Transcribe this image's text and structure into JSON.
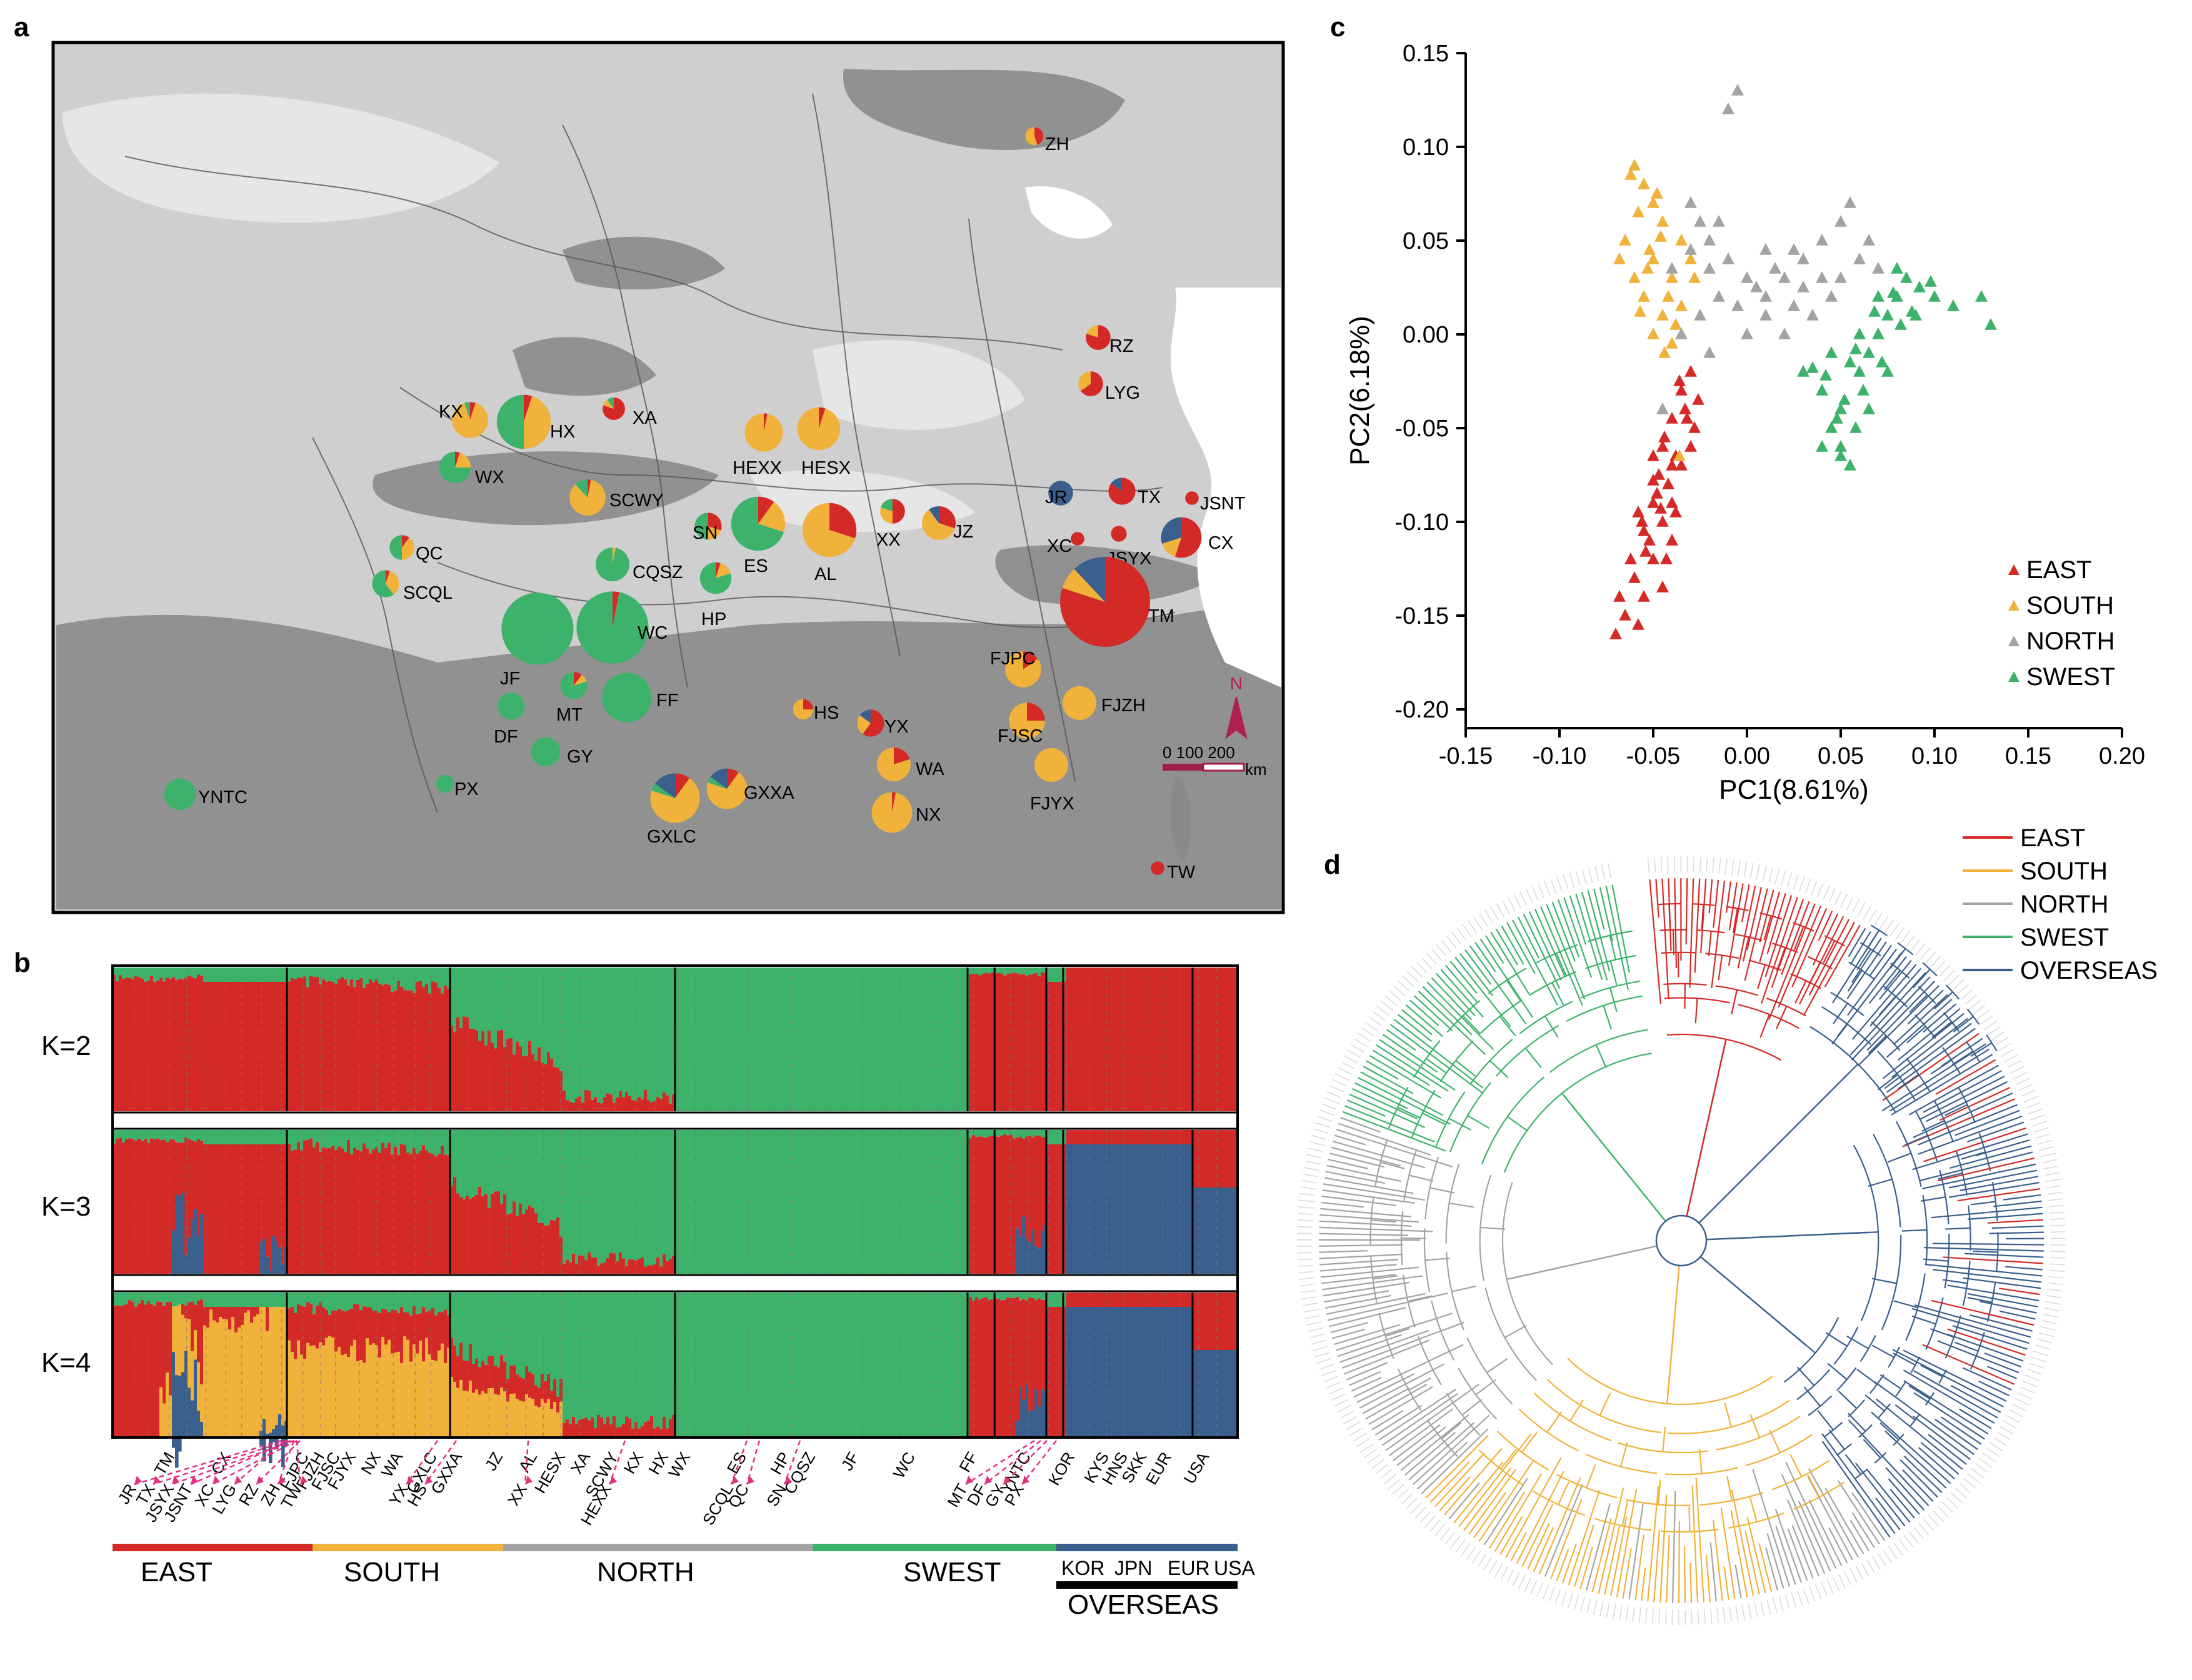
{
  "panel_labels": {
    "a": "a",
    "b": "b",
    "c": "c",
    "d": "d"
  },
  "colors": {
    "east": "#d42a27",
    "south": "#f0b23a",
    "north": "#a3a3a3",
    "swest": "#3db26a",
    "overseas": "#3a5f8c"
  },
  "map": {
    "compass": "N",
    "scale_label": "0 100 200",
    "scale_unit": "km",
    "sites": [
      {
        "name": "ZH",
        "size": 0.8,
        "mix": [
          0.45,
          0.55,
          0,
          0,
          0
        ]
      },
      {
        "name": "RZ",
        "size": 1.1,
        "mix": [
          0.8,
          0.2,
          0,
          0,
          0
        ]
      },
      {
        "name": "LYG",
        "size": 1.1,
        "mix": [
          0.65,
          0.35,
          0,
          0,
          0
        ]
      },
      {
        "name": "KX",
        "size": 1.6,
        "mix": [
          0.05,
          0.9,
          0,
          0.05,
          0
        ]
      },
      {
        "name": "HX",
        "size": 2.4,
        "mix": [
          0.05,
          0.45,
          0,
          0.5,
          0
        ]
      },
      {
        "name": "XA",
        "size": 1.0,
        "mix": [
          0.8,
          0.1,
          0,
          0.1,
          0
        ]
      },
      {
        "name": "WX",
        "size": 1.4,
        "mix": [
          0.05,
          0.2,
          0,
          0.75,
          0
        ]
      },
      {
        "name": "HEXX",
        "size": 1.7,
        "mix": [
          0.03,
          0.97,
          0,
          0,
          0
        ]
      },
      {
        "name": "HESX",
        "size": 1.9,
        "mix": [
          0.05,
          0.95,
          0,
          0,
          0
        ]
      },
      {
        "name": "SCWY",
        "size": 1.6,
        "mix": [
          0.03,
          0.85,
          0,
          0.12,
          0
        ]
      },
      {
        "name": "JR",
        "size": 1.1,
        "mix": [
          0,
          0,
          0,
          0,
          1
        ]
      },
      {
        "name": "TX",
        "size": 1.2,
        "mix": [
          0.85,
          0,
          0,
          0,
          0.15
        ]
      },
      {
        "name": "JSNT",
        "size": 0.6,
        "mix": [
          1,
          0,
          0,
          0,
          0
        ]
      },
      {
        "name": "QC",
        "size": 1.1,
        "mix": [
          0.1,
          0.4,
          0,
          0.5,
          0
        ]
      },
      {
        "name": "SN",
        "size": 1.2,
        "mix": [
          0.3,
          0.2,
          0,
          0.5,
          0
        ]
      },
      {
        "name": "ES",
        "size": 2.4,
        "mix": [
          0.1,
          0.2,
          0,
          0.7,
          0
        ]
      },
      {
        "name": "AL",
        "size": 2.4,
        "mix": [
          0.3,
          0.7,
          0,
          0,
          0
        ]
      },
      {
        "name": "XX",
        "size": 1.1,
        "mix": [
          0.5,
          0.3,
          0,
          0.2,
          0
        ]
      },
      {
        "name": "JZ",
        "size": 1.5,
        "mix": [
          0.3,
          0.6,
          0,
          0,
          0.1
        ]
      },
      {
        "name": "XC",
        "size": 0.6,
        "mix": [
          1,
          0,
          0,
          0,
          0
        ]
      },
      {
        "name": "JSYX",
        "size": 0.7,
        "mix": [
          1,
          0,
          0,
          0,
          0
        ]
      },
      {
        "name": "CX",
        "size": 1.8,
        "mix": [
          0.55,
          0.15,
          0,
          0,
          0.3
        ]
      },
      {
        "name": "SCQL",
        "size": 1.2,
        "mix": [
          0.05,
          0.35,
          0,
          0.6,
          0
        ]
      },
      {
        "name": "CQSZ",
        "size": 1.5,
        "mix": [
          0,
          0.03,
          0,
          0.97,
          0
        ]
      },
      {
        "name": "HP",
        "size": 1.4,
        "mix": [
          0.05,
          0.15,
          0,
          0.8,
          0
        ]
      },
      {
        "name": "TM",
        "size": 4.0,
        "mix": [
          0.8,
          0.08,
          0,
          0,
          0.12
        ]
      },
      {
        "name": "WC",
        "size": 3.2,
        "mix": [
          0.03,
          0,
          0,
          0.97,
          0
        ]
      },
      {
        "name": "JF",
        "size": 3.2,
        "mix": [
          0,
          0,
          0,
          1,
          0
        ]
      },
      {
        "name": "FJPC",
        "size": 1.6,
        "mix": [
          0.15,
          0.85,
          0,
          0,
          0
        ]
      },
      {
        "name": "MT",
        "size": 1.2,
        "mix": [
          0.1,
          0.1,
          0,
          0.8,
          0
        ]
      },
      {
        "name": "FF",
        "size": 2.2,
        "mix": [
          0,
          0,
          0,
          1,
          0
        ]
      },
      {
        "name": "FJZH",
        "size": 1.5,
        "mix": [
          0,
          1,
          0,
          0,
          0
        ]
      },
      {
        "name": "DF",
        "size": 1.2,
        "mix": [
          0,
          0,
          0,
          1,
          0
        ]
      },
      {
        "name": "HS",
        "size": 0.9,
        "mix": [
          0.25,
          0.75,
          0,
          0,
          0
        ]
      },
      {
        "name": "YX",
        "size": 1.2,
        "mix": [
          0.6,
          0.25,
          0,
          0,
          0.15
        ]
      },
      {
        "name": "FJSC",
        "size": 1.6,
        "mix": [
          0.25,
          0.75,
          0,
          0,
          0
        ]
      },
      {
        "name": "GY",
        "size": 1.3,
        "mix": [
          0,
          0,
          0,
          1,
          0
        ]
      },
      {
        "name": "WA",
        "size": 1.5,
        "mix": [
          0.2,
          0.8,
          0,
          0,
          0
        ]
      },
      {
        "name": "YNTC",
        "size": 1.4,
        "mix": [
          0,
          0,
          0,
          1,
          0
        ]
      },
      {
        "name": "PX",
        "size": 0.8,
        "mix": [
          0,
          0,
          0,
          1,
          0
        ]
      },
      {
        "name": "GXLC",
        "size": 2.2,
        "mix": [
          0.1,
          0.7,
          0,
          0.05,
          0.15
        ]
      },
      {
        "name": "GXXA",
        "size": 1.8,
        "mix": [
          0.1,
          0.7,
          0,
          0.05,
          0.15
        ]
      },
      {
        "name": "FJYX",
        "size": 1.5,
        "mix": [
          0,
          1,
          0,
          0,
          0
        ]
      },
      {
        "name": "NX",
        "size": 1.8,
        "mix": [
          0.03,
          0.97,
          0,
          0,
          0
        ]
      },
      {
        "name": "TW",
        "size": 0.6,
        "mix": [
          1,
          0,
          0,
          0,
          0
        ]
      }
    ]
  },
  "structure": {
    "k_labels": [
      "K=2",
      "K=3",
      "K=4"
    ],
    "bottom_labels": [
      "TM",
      "CX",
      "FJPC",
      "FJZH",
      "FJSC",
      "FJYX",
      "NX",
      "WA",
      "GXLC",
      "GXXA",
      "JZ",
      "AL",
      "HESX",
      "XA",
      "SCWY",
      "KX",
      "HX",
      "WX",
      "ES",
      "HP",
      "CQSZ",
      "JF",
      "WC",
      "FF",
      "YNTC",
      "KOR",
      "KYS",
      "HNS",
      "SKK",
      "EUR",
      "USA"
    ],
    "arrow_labels": [
      "JR",
      "TX",
      "JSYX",
      "JSNT",
      "XC",
      "LYG",
      "RZ",
      "ZH",
      "TW",
      "YX",
      "HS",
      "XX",
      "HEXX",
      "SCQL",
      "QC",
      "SN",
      "MT",
      "DF",
      "GY",
      "PX"
    ],
    "groups": [
      "EAST",
      "SOUTH",
      "NORTH",
      "SWEST"
    ],
    "overseas_labels": [
      "KOR",
      "JPN",
      "EUR",
      "USA"
    ],
    "overseas_title": "OVERSEAS"
  },
  "chart_data": {
    "type": "scatter",
    "xlabel": "PC1(8.61%)",
    "ylabel": "PC2(6.18%)",
    "xlim": [
      -0.15,
      0.2
    ],
    "ylim": [
      -0.2,
      0.15
    ],
    "xticks": [
      "-0.15",
      "-0.10",
      "-0.05",
      "0.00",
      "0.05",
      "0.10",
      "0.15",
      "0.20"
    ],
    "yticks": [
      "0.15",
      "0.10",
      "0.05",
      "0.00",
      "-0.05",
      "-0.10",
      "-0.15",
      "-0.20"
    ],
    "legend_position": "bottom-right",
    "series": [
      {
        "name": "EAST",
        "color": "#d42a27",
        "points": [
          [
            -0.03,
            -0.02
          ],
          [
            -0.035,
            -0.03
          ],
          [
            -0.04,
            -0.045
          ],
          [
            -0.028,
            -0.05
          ],
          [
            -0.045,
            -0.06
          ],
          [
            -0.05,
            -0.065
          ],
          [
            -0.035,
            -0.07
          ],
          [
            -0.042,
            -0.08
          ],
          [
            -0.05,
            -0.09
          ],
          [
            -0.038,
            -0.095
          ],
          [
            -0.045,
            -0.1
          ],
          [
            -0.055,
            -0.105
          ],
          [
            -0.04,
            -0.11
          ],
          [
            -0.05,
            -0.12
          ],
          [
            -0.06,
            -0.13
          ],
          [
            -0.045,
            -0.135
          ],
          [
            -0.055,
            -0.14
          ],
          [
            -0.065,
            -0.15
          ],
          [
            -0.07,
            -0.16
          ],
          [
            -0.033,
            -0.04
          ],
          [
            -0.047,
            -0.075
          ],
          [
            -0.058,
            -0.095
          ],
          [
            -0.03,
            -0.06
          ],
          [
            -0.04,
            -0.09
          ],
          [
            -0.052,
            -0.11
          ],
          [
            -0.062,
            -0.12
          ],
          [
            -0.036,
            -0.025
          ],
          [
            -0.044,
            -0.055
          ],
          [
            -0.026,
            -0.035
          ],
          [
            -0.038,
            -0.065
          ],
          [
            -0.048,
            -0.085
          ],
          [
            -0.056,
            -0.1
          ],
          [
            -0.043,
            -0.12
          ],
          [
            -0.068,
            -0.14
          ],
          [
            -0.058,
            -0.155
          ],
          [
            -0.032,
            -0.045
          ],
          [
            -0.05,
            -0.078
          ],
          [
            -0.04,
            -0.07
          ],
          [
            -0.046,
            -0.093
          ],
          [
            -0.054,
            -0.116
          ]
        ]
      },
      {
        "name": "SOUTH",
        "color": "#f0b23a",
        "points": [
          [
            -0.06,
            0.09
          ],
          [
            -0.055,
            0.08
          ],
          [
            -0.05,
            0.07
          ],
          [
            -0.045,
            0.06
          ],
          [
            -0.065,
            0.05
          ],
          [
            -0.05,
            0.04
          ],
          [
            -0.04,
            0.03
          ],
          [
            -0.035,
            0.05
          ],
          [
            -0.06,
            0.03
          ],
          [
            -0.055,
            0.02
          ],
          [
            -0.045,
            0.01
          ],
          [
            -0.05,
            0.0
          ],
          [
            -0.04,
            -0.005
          ],
          [
            -0.058,
            0.065
          ],
          [
            -0.048,
            0.075
          ],
          [
            -0.052,
            0.045
          ],
          [
            -0.068,
            0.04
          ],
          [
            -0.042,
            0.02
          ],
          [
            -0.038,
            0.005
          ],
          [
            -0.062,
            0.085
          ],
          [
            -0.03,
            0.04
          ],
          [
            -0.035,
            0.015
          ],
          [
            -0.057,
            0.012
          ],
          [
            -0.046,
            0.052
          ],
          [
            -0.053,
            0.035
          ],
          [
            -0.028,
            0.03
          ],
          [
            -0.044,
            -0.01
          ],
          [
            -0.036,
            -0.065
          ]
        ]
      },
      {
        "name": "NORTH",
        "color": "#a3a3a3",
        "points": [
          [
            -0.005,
            0.13
          ],
          [
            -0.01,
            0.12
          ],
          [
            -0.03,
            0.07
          ],
          [
            -0.02,
            0.05
          ],
          [
            -0.01,
            0.04
          ],
          [
            0.0,
            0.03
          ],
          [
            0.01,
            0.02
          ],
          [
            0.02,
            0.03
          ],
          [
            0.03,
            0.04
          ],
          [
            0.04,
            0.05
          ],
          [
            0.05,
            0.06
          ],
          [
            0.06,
            0.04
          ],
          [
            0.035,
            0.01
          ],
          [
            0.02,
            0.0
          ],
          [
            0.01,
            0.01
          ],
          [
            -0.015,
            0.02
          ],
          [
            -0.025,
            0.01
          ],
          [
            -0.035,
            0.0
          ],
          [
            -0.02,
            -0.01
          ],
          [
            0.0,
            0.0
          ],
          [
            0.045,
            0.02
          ],
          [
            0.055,
            0.07
          ],
          [
            0.04,
            0.03
          ],
          [
            0.025,
            0.045
          ],
          [
            0.015,
            0.035
          ],
          [
            0.005,
            0.025
          ],
          [
            -0.005,
            0.015
          ],
          [
            0.03,
            0.025
          ],
          [
            0.05,
            0.03
          ],
          [
            -0.02,
            0.035
          ],
          [
            -0.03,
            0.045
          ],
          [
            -0.04,
            0.035
          ],
          [
            -0.025,
            0.06
          ],
          [
            -0.015,
            0.06
          ],
          [
            0.065,
            0.05
          ],
          [
            0.07,
            0.035
          ],
          [
            -0.045,
            -0.04
          ],
          [
            0.01,
            0.045
          ],
          [
            0.025,
            0.015
          ]
        ]
      },
      {
        "name": "SWEST",
        "color": "#3db26a",
        "points": [
          [
            0.03,
            -0.02
          ],
          [
            0.04,
            -0.03
          ],
          [
            0.045,
            -0.05
          ],
          [
            0.05,
            -0.06
          ],
          [
            0.055,
            -0.07
          ],
          [
            0.04,
            -0.06
          ],
          [
            0.05,
            -0.04
          ],
          [
            0.06,
            -0.02
          ],
          [
            0.065,
            -0.01
          ],
          [
            0.07,
            0.0
          ],
          [
            0.075,
            0.01
          ],
          [
            0.08,
            0.02
          ],
          [
            0.085,
            0.03
          ],
          [
            0.07,
            0.02
          ],
          [
            0.06,
            0.0
          ],
          [
            0.055,
            -0.015
          ],
          [
            0.045,
            -0.01
          ],
          [
            0.09,
            0.01
          ],
          [
            0.1,
            0.02
          ],
          [
            0.11,
            0.015
          ],
          [
            0.125,
            0.02
          ],
          [
            0.13,
            0.005
          ],
          [
            0.08,
            0.035
          ],
          [
            0.075,
            -0.02
          ],
          [
            0.065,
            -0.04
          ],
          [
            0.058,
            -0.05
          ],
          [
            0.048,
            -0.045
          ],
          [
            0.052,
            -0.035
          ],
          [
            0.062,
            -0.03
          ],
          [
            0.072,
            -0.015
          ],
          [
            0.082,
            0.005
          ],
          [
            0.092,
            0.025
          ],
          [
            0.068,
            0.012
          ],
          [
            0.078,
            0.022
          ],
          [
            0.088,
            0.012
          ],
          [
            0.098,
            0.028
          ],
          [
            0.042,
            -0.022
          ],
          [
            0.035,
            -0.018
          ],
          [
            0.058,
            -0.008
          ],
          [
            0.05,
            -0.065
          ]
        ]
      }
    ]
  },
  "tree": {
    "legend": [
      "EAST",
      "SOUTH",
      "NORTH",
      "SWEST",
      "OVERSEAS"
    ]
  }
}
